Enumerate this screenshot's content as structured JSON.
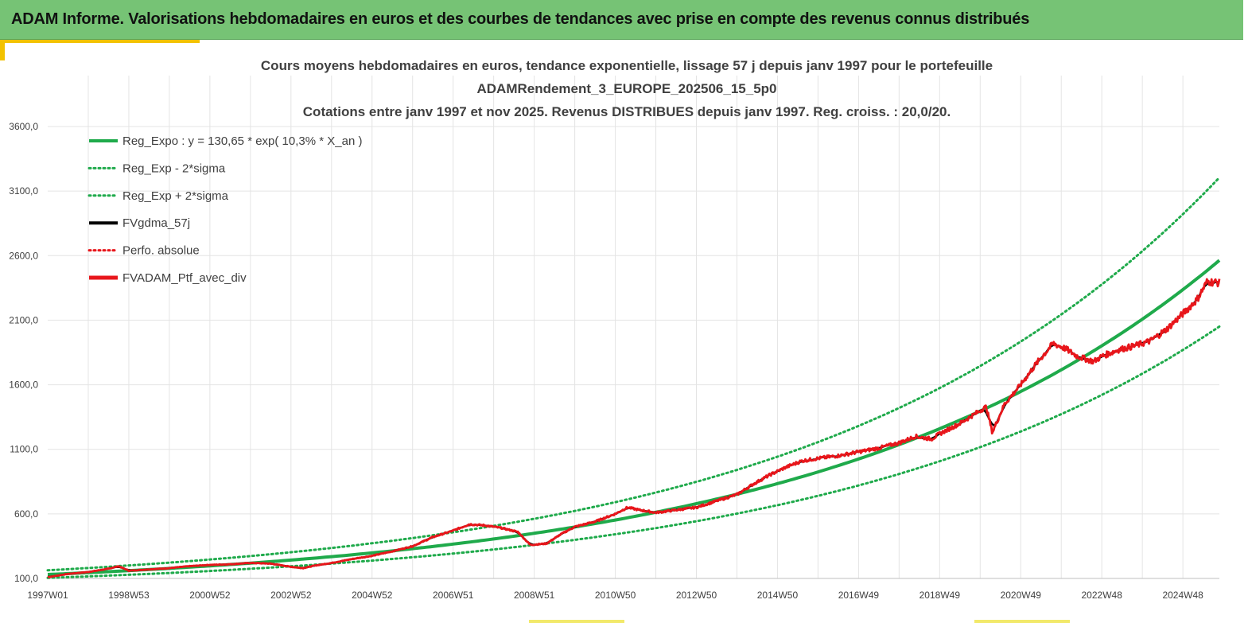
{
  "header": {
    "title": "ADAM Informe. Valorisations hebdomadaires en euros et des courbes de tendances avec prise en compte des revenus connus distribués"
  },
  "colors": {
    "banner": "#76c375",
    "trend": "#1faa4b",
    "smooth": "#000000",
    "portfolio": "#e8161b",
    "grid": "#e4e4e4",
    "accent": "#f2c200"
  },
  "chart_data": {
    "type": "line",
    "title_lines": [
      "Cours moyens hebdomadaires  en euros, tendance exponentielle, lissage 57 j depuis janv 1997 pour le portefeuille",
      "ADAMRendement_3_EUROPE_202506_15_5p0",
      "Cotations  entre janv 1997 et nov 2025. Revenus DISTRIBUES depuis janv 1997. Reg. croiss. : 20,0/20."
    ],
    "xlabel": "",
    "ylabel": "",
    "x_range": [
      1997.0,
      2025.9
    ],
    "ylim": [
      100,
      3600
    ],
    "y_ticks": [
      {
        "value": 100,
        "label": "100,0"
      },
      {
        "value": 600,
        "label": "600,0"
      },
      {
        "value": 1100,
        "label": "1100,0"
      },
      {
        "value": 1600,
        "label": "1600,0"
      },
      {
        "value": 2100,
        "label": "2100,0"
      },
      {
        "value": 2600,
        "label": "2600,0"
      },
      {
        "value": 3100,
        "label": "3100,0"
      },
      {
        "value": 3600,
        "label": "3600,0"
      }
    ],
    "x_ticks": [
      {
        "value": 1997.0,
        "label": "1997W01"
      },
      {
        "value": 1999.0,
        "label": "1998W53"
      },
      {
        "value": 2001.0,
        "label": "2000W52"
      },
      {
        "value": 2003.0,
        "label": "2002W52"
      },
      {
        "value": 2005.0,
        "label": "2004W52"
      },
      {
        "value": 2007.0,
        "label": "2006W51"
      },
      {
        "value": 2009.0,
        "label": "2008W51"
      },
      {
        "value": 2011.0,
        "label": "2010W50"
      },
      {
        "value": 2013.0,
        "label": "2012W50"
      },
      {
        "value": 2015.0,
        "label": "2014W50"
      },
      {
        "value": 2017.0,
        "label": "2016W49"
      },
      {
        "value": 2019.0,
        "label": "2018W49"
      },
      {
        "value": 2021.0,
        "label": "2020W49"
      },
      {
        "value": 2023.0,
        "label": "2022W48"
      },
      {
        "value": 2025.0,
        "label": "2024W48"
      }
    ],
    "grid": true,
    "legend_position": "top-left",
    "trend": {
      "a": 130.65,
      "rate": 0.103,
      "sigma_factor": 1.25
    },
    "series": [
      {
        "name": "Reg_Expo : y = 130,65 * exp( 10,3% *  X_an )",
        "key": "reg",
        "style": "solid",
        "color": "#1faa4b",
        "kind": "trend",
        "mult": 1.0
      },
      {
        "name": "Reg_Exp - 2*sigma",
        "key": "reg_low",
        "style": "dotted",
        "color": "#1faa4b",
        "kind": "trend",
        "mult": 0.8
      },
      {
        "name": "Reg_Exp + 2*sigma",
        "key": "reg_high",
        "style": "dotted",
        "color": "#1faa4b",
        "kind": "trend",
        "mult": 1.25
      },
      {
        "name": "FVgdma_57j",
        "key": "smooth",
        "style": "solid",
        "color": "#000000",
        "kind": "data"
      },
      {
        "name": "Perfo. absolue",
        "key": "perfo",
        "style": "dotted",
        "color": "#e8161b",
        "kind": "data"
      },
      {
        "name": "FVADAM_Ptf_avec_div",
        "key": "ptf",
        "style": "solid-thick",
        "color": "#e8161b",
        "kind": "data"
      }
    ],
    "portfolio_points": {
      "x": [
        1997.0,
        1997.5,
        1998.0,
        1998.5,
        1998.75,
        1999.0,
        1999.5,
        2000.0,
        2000.5,
        2001.0,
        2001.5,
        2002.0,
        2002.5,
        2003.0,
        2003.3,
        2003.6,
        2004.0,
        2004.5,
        2005.0,
        2005.5,
        2006.0,
        2006.5,
        2007.0,
        2007.4,
        2007.8,
        2008.2,
        2008.6,
        2008.9,
        2009.3,
        2009.7,
        2010.0,
        2010.5,
        2011.0,
        2011.3,
        2011.6,
        2012.0,
        2012.5,
        2013.0,
        2013.5,
        2014.0,
        2014.4,
        2014.8,
        2015.2,
        2015.6,
        2016.0,
        2016.5,
        2017.0,
        2017.5,
        2018.0,
        2018.4,
        2018.8,
        2019.0,
        2019.5,
        2020.0,
        2020.15,
        2020.3,
        2020.6,
        2021.0,
        2021.4,
        2021.8,
        2022.1,
        2022.4,
        2022.6,
        2022.8,
        2023.0,
        2023.4,
        2023.8,
        2024.2,
        2024.6,
        2025.0,
        2025.35,
        2025.6,
        2025.9
      ],
      "y": [
        110,
        135,
        150,
        175,
        195,
        160,
        170,
        180,
        195,
        205,
        210,
        220,
        215,
        190,
        180,
        200,
        220,
        250,
        275,
        310,
        350,
        420,
        470,
        520,
        510,
        490,
        460,
        360,
        370,
        450,
        500,
        540,
        600,
        650,
        630,
        610,
        630,
        650,
        700,
        750,
        830,
        900,
        960,
        1010,
        1030,
        1050,
        1080,
        1110,
        1150,
        1200,
        1180,
        1220,
        1300,
        1400,
        1430,
        1230,
        1450,
        1600,
        1770,
        1920,
        1880,
        1820,
        1800,
        1780,
        1820,
        1870,
        1900,
        1940,
        2030,
        2150,
        2260,
        2400,
        2390
      ]
    }
  }
}
